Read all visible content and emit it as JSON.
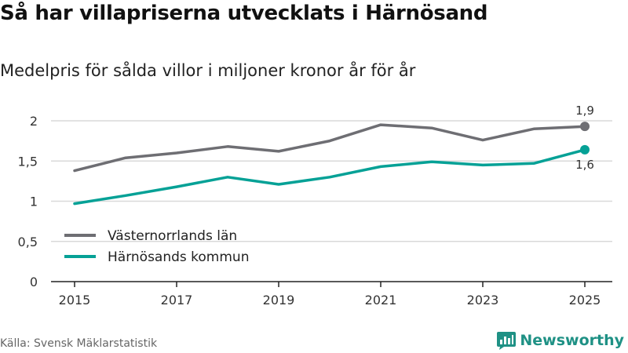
{
  "title": "Så har villapriserna utvecklats i Härnösand",
  "subtitle": "Medelpris för sålda villor i miljoner kronor år för år",
  "source": "Källa: Svensk Mäklarstatistik",
  "brand": {
    "name": "Newsworthy",
    "icon": "newsworthy-logo-icon",
    "color": "#1f9185"
  },
  "chart_data": {
    "type": "line",
    "x": [
      2015,
      2016,
      2017,
      2018,
      2019,
      2020,
      2021,
      2022,
      2023,
      2024,
      2025
    ],
    "x_tick_values": [
      2015,
      2017,
      2019,
      2021,
      2023,
      2025
    ],
    "x_tick_labels": [
      "2015",
      "2017",
      "2019",
      "2021",
      "2023",
      "2025"
    ],
    "y_tick_values": [
      0,
      0.5,
      1,
      1.5,
      2
    ],
    "y_tick_labels": [
      "0",
      "0,5",
      "1",
      "1,5",
      "2"
    ],
    "xlim": [
      2015,
      2025
    ],
    "ylim": [
      0,
      2
    ],
    "grid": "horizontal",
    "legend_position": "bottom-left",
    "series": [
      {
        "name": "Västernorrlands län",
        "color": "#6e6e73",
        "values": [
          1.38,
          1.54,
          1.6,
          1.68,
          1.62,
          1.75,
          1.95,
          1.91,
          1.76,
          1.9,
          1.93
        ],
        "end_label": "1,9",
        "end_label_position": "above"
      },
      {
        "name": "Härnösands kommun",
        "color": "#05a196",
        "values": [
          0.97,
          1.07,
          1.18,
          1.3,
          1.21,
          1.3,
          1.43,
          1.49,
          1.45,
          1.47,
          1.64
        ],
        "end_label": "1,6",
        "end_label_position": "below"
      }
    ]
  }
}
